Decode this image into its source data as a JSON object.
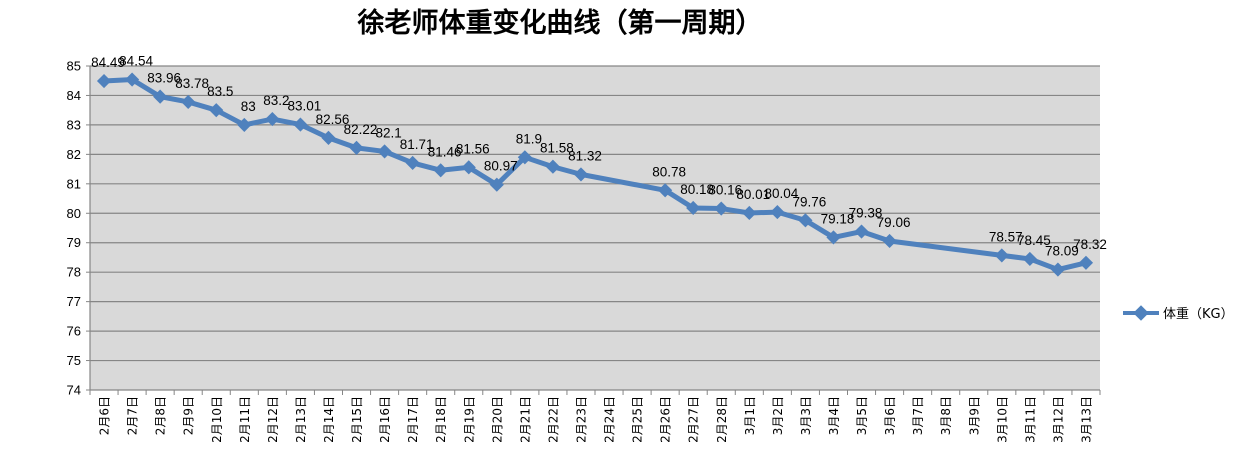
{
  "chart_data": {
    "type": "line",
    "title": "徐老师体重变化曲线（第一周期）",
    "xlabel": "",
    "ylabel": "",
    "ylim": [
      74,
      85
    ],
    "yticks": [
      74,
      75,
      76,
      77,
      78,
      79,
      80,
      81,
      82,
      83,
      84,
      85
    ],
    "grid": true,
    "legend_position": "right",
    "categories": [
      "2月6日",
      "2月7日",
      "2月8日",
      "2月9日",
      "2月10日",
      "2月11日",
      "2月12日",
      "2月13日",
      "2月14日",
      "2月15日",
      "2月16日",
      "2月17日",
      "2月18日",
      "2月19日",
      "2月20日",
      "2月21日",
      "2月22日",
      "2月23日",
      "2月24日",
      "2月25日",
      "2月26日",
      "2月27日",
      "2月28日",
      "3月1日",
      "3月2日",
      "3月3日",
      "3月4日",
      "3月5日",
      "3月6日",
      "3月7日",
      "3月8日",
      "3月9日",
      "3月10日",
      "3月11日",
      "3月12日",
      "3月13日"
    ],
    "series": [
      {
        "name": "体重（KG）",
        "color": "#4f81bd",
        "values": [
          84.49,
          84.54,
          83.96,
          83.78,
          83.5,
          83,
          83.2,
          83.01,
          82.56,
          82.22,
          82.1,
          81.71,
          81.46,
          81.56,
          80.97,
          81.9,
          81.58,
          81.32,
          null,
          null,
          80.78,
          80.18,
          80.16,
          80.01,
          80.04,
          79.76,
          79.18,
          79.38,
          79.06,
          null,
          null,
          null,
          78.57,
          78.45,
          78.09,
          78.32
        ]
      }
    ]
  }
}
